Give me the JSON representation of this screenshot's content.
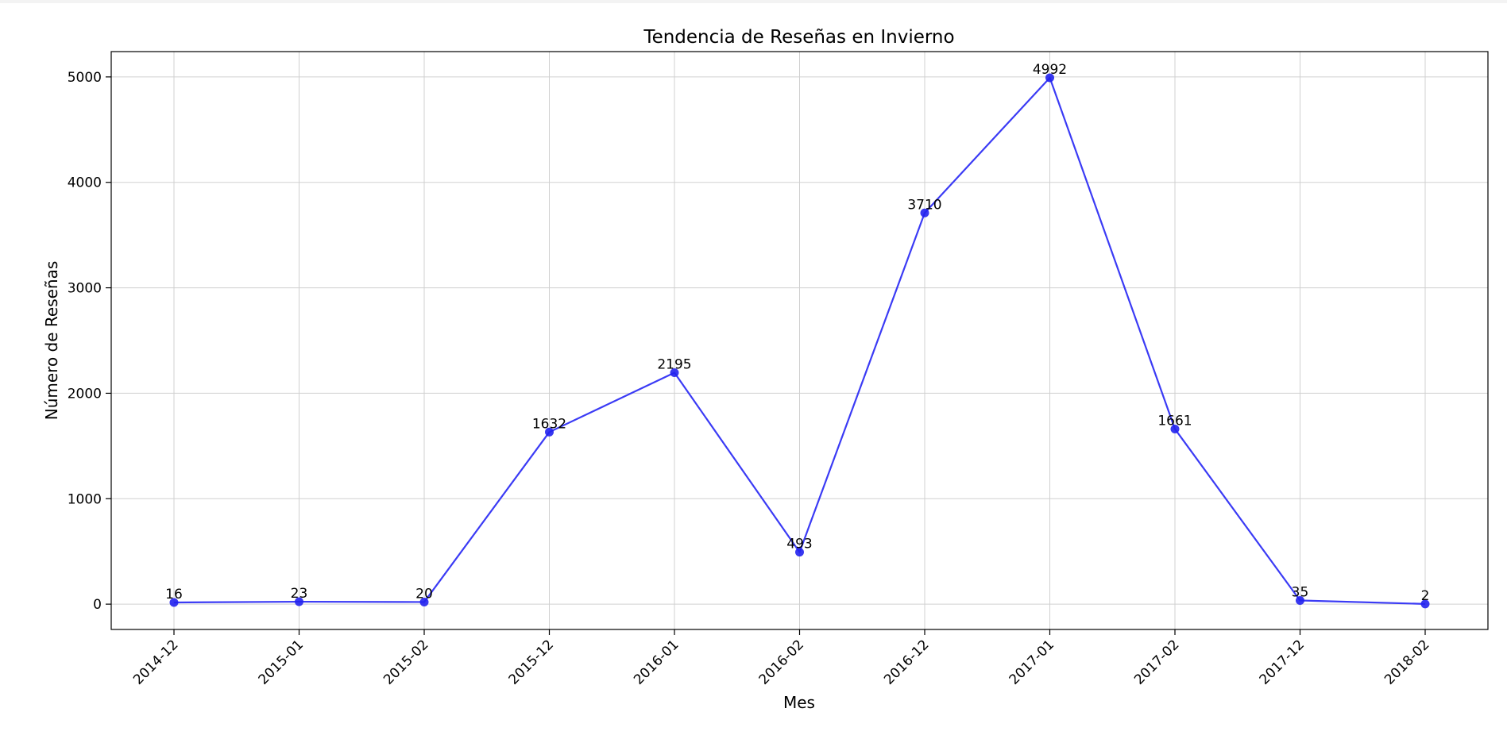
{
  "chart_data": {
    "type": "line",
    "title": "Tendencia de Reseñas en Invierno",
    "xlabel": "Mes",
    "ylabel": "Número de Reseñas",
    "categories": [
      "2014-12",
      "2015-01",
      "2015-02",
      "2015-12",
      "2016-01",
      "2016-02",
      "2016-12",
      "2017-01",
      "2017-02",
      "2017-12",
      "2018-02"
    ],
    "series": [
      {
        "values": [
          16,
          23,
          20,
          1632,
          2195,
          493,
          3710,
          4992,
          1661,
          35,
          2
        ]
      }
    ],
    "data_labels": [
      "16",
      "23",
      "20",
      "1632",
      "2195",
      "493",
      "3710",
      "4992",
      "1661",
      "35",
      "2"
    ],
    "yticks": [
      0,
      1000,
      2000,
      3000,
      4000,
      5000
    ],
    "ytick_labels": [
      "0",
      "1000",
      "2000",
      "3000",
      "4000",
      "5000"
    ],
    "ylim": [
      -240,
      5240
    ],
    "grid": true,
    "legend": false,
    "colors": {
      "line": "#3b3bf5",
      "marker": "#2222ee",
      "grid": "#d0d0d0"
    }
  }
}
